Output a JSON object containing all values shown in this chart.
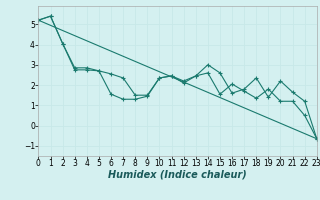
{
  "title": "",
  "xlabel": "Humidex (Indice chaleur)",
  "ylabel": "",
  "bg_color": "#d4f0f0",
  "line_color": "#1a7a6e",
  "grid_color": "#c8e8e8",
  "xlim": [
    0,
    23
  ],
  "ylim": [
    -1.5,
    5.9
  ],
  "yticks": [
    -1,
    0,
    1,
    2,
    3,
    4,
    5
  ],
  "xticks": [
    0,
    1,
    2,
    3,
    4,
    5,
    6,
    7,
    8,
    9,
    10,
    11,
    12,
    13,
    14,
    15,
    16,
    17,
    18,
    19,
    20,
    21,
    22,
    23
  ],
  "line1_x": [
    0,
    1,
    2,
    3,
    4,
    5,
    6,
    7,
    8,
    9,
    10,
    11,
    12,
    13,
    14,
    15,
    16,
    17,
    18,
    19,
    20,
    21,
    22,
    23
  ],
  "line1_y": [
    5.2,
    5.4,
    4.05,
    2.75,
    2.75,
    2.7,
    1.55,
    1.3,
    1.3,
    1.45,
    2.35,
    2.45,
    2.1,
    2.45,
    2.6,
    1.55,
    2.05,
    1.7,
    1.35,
    1.8,
    1.2,
    1.2,
    0.5,
    -0.65
  ],
  "line2_x": [
    0,
    1,
    2,
    3,
    4,
    5,
    6,
    7,
    8,
    9,
    10,
    11,
    12,
    13,
    14,
    15,
    16,
    17,
    18,
    19,
    20,
    21,
    22,
    23
  ],
  "line2_y": [
    5.2,
    5.4,
    4.05,
    2.85,
    2.85,
    2.7,
    2.55,
    2.35,
    1.5,
    1.5,
    2.35,
    2.45,
    2.2,
    2.45,
    3.0,
    2.6,
    1.6,
    1.8,
    2.35,
    1.4,
    2.2,
    1.65,
    1.2,
    -0.65
  ],
  "line3_x": [
    0,
    23
  ],
  "line3_y": [
    5.2,
    -0.65
  ],
  "tick_fontsize": 5.5,
  "xlabel_fontsize": 7
}
